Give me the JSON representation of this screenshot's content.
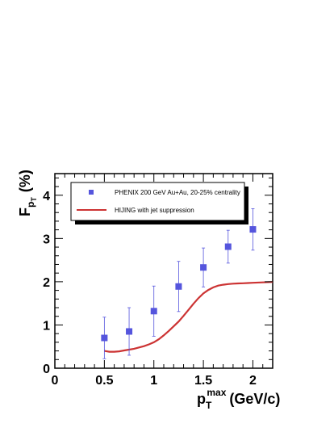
{
  "chart_data": {
    "type": "scatter",
    "xlabel": {
      "main": "p",
      "sub": "T",
      "sup": "max",
      "unit": "(GeV/c)"
    },
    "ylabel": {
      "main": "F",
      "sub": "p",
      "subsub": "T",
      "unit": "(%)"
    },
    "xlim": [
      0,
      2.2
    ],
    "ylim": [
      0,
      4.5
    ],
    "x_ticks": [
      0,
      0.5,
      1,
      1.5,
      2
    ],
    "x_tick_labels": [
      "0",
      "0.5",
      "1",
      "1.5",
      "2"
    ],
    "y_ticks": [
      0,
      1,
      2,
      3,
      4
    ],
    "y_tick_labels": [
      "0",
      "1",
      "2",
      "3",
      "4"
    ],
    "grid": false,
    "legend_position": "top-left",
    "series": [
      {
        "name": "PHENIX 200 GeV Au+Au, 20-25% centrality",
        "kind": "points",
        "marker": "square",
        "color": "#5555dd",
        "x": [
          0.5,
          0.75,
          1.0,
          1.25,
          1.5,
          1.75,
          2.0
        ],
        "y": [
          0.7,
          0.85,
          1.32,
          1.89,
          2.33,
          2.81,
          3.21
        ],
        "err": [
          0.48,
          0.55,
          0.58,
          0.58,
          0.45,
          0.38,
          0.48
        ]
      },
      {
        "name": "HIJING with jet suppression",
        "kind": "line",
        "color": "#cc3333",
        "x": [
          0.5,
          0.55,
          0.6,
          0.65,
          0.7,
          0.75,
          0.8,
          0.85,
          0.9,
          0.95,
          1.0,
          1.05,
          1.1,
          1.15,
          1.2,
          1.25,
          1.3,
          1.35,
          1.4,
          1.45,
          1.5,
          1.55,
          1.6,
          1.65,
          1.7,
          1.75,
          1.8,
          1.85,
          1.9,
          1.95,
          2.0,
          2.1,
          2.2
        ],
        "y": [
          0.4,
          0.38,
          0.38,
          0.39,
          0.41,
          0.43,
          0.45,
          0.48,
          0.51,
          0.55,
          0.6,
          0.67,
          0.76,
          0.86,
          0.97,
          1.08,
          1.21,
          1.35,
          1.49,
          1.62,
          1.73,
          1.81,
          1.87,
          1.91,
          1.93,
          1.945,
          1.955,
          1.96,
          1.965,
          1.97,
          1.975,
          1.985,
          1.995
        ]
      }
    ]
  }
}
